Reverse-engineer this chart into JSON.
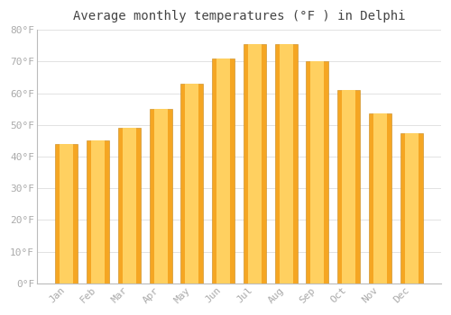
{
  "title": "Average monthly temperatures (°F ) in Delphi",
  "months": [
    "Jan",
    "Feb",
    "Mar",
    "Apr",
    "May",
    "Jun",
    "Jul",
    "Aug",
    "Sep",
    "Oct",
    "Nov",
    "Dec"
  ],
  "values": [
    44,
    45,
    49,
    55,
    63,
    71,
    75.5,
    75.5,
    70,
    61,
    53.5,
    47.5
  ],
  "bar_color_edge": "#F5A623",
  "bar_color_center": "#FFD060",
  "ylim": [
    0,
    80
  ],
  "yticks": [
    0,
    10,
    20,
    30,
    40,
    50,
    60,
    70,
    80
  ],
  "ytick_labels": [
    "0°F",
    "10°F",
    "20°F",
    "30°F",
    "40°F",
    "50°F",
    "60°F",
    "70°F",
    "80°F"
  ],
  "background_color": "#FFFFFF",
  "grid_color": "#DDDDDD",
  "title_fontsize": 10,
  "tick_fontsize": 8,
  "tick_color": "#AAAAAA",
  "font_family": "monospace"
}
